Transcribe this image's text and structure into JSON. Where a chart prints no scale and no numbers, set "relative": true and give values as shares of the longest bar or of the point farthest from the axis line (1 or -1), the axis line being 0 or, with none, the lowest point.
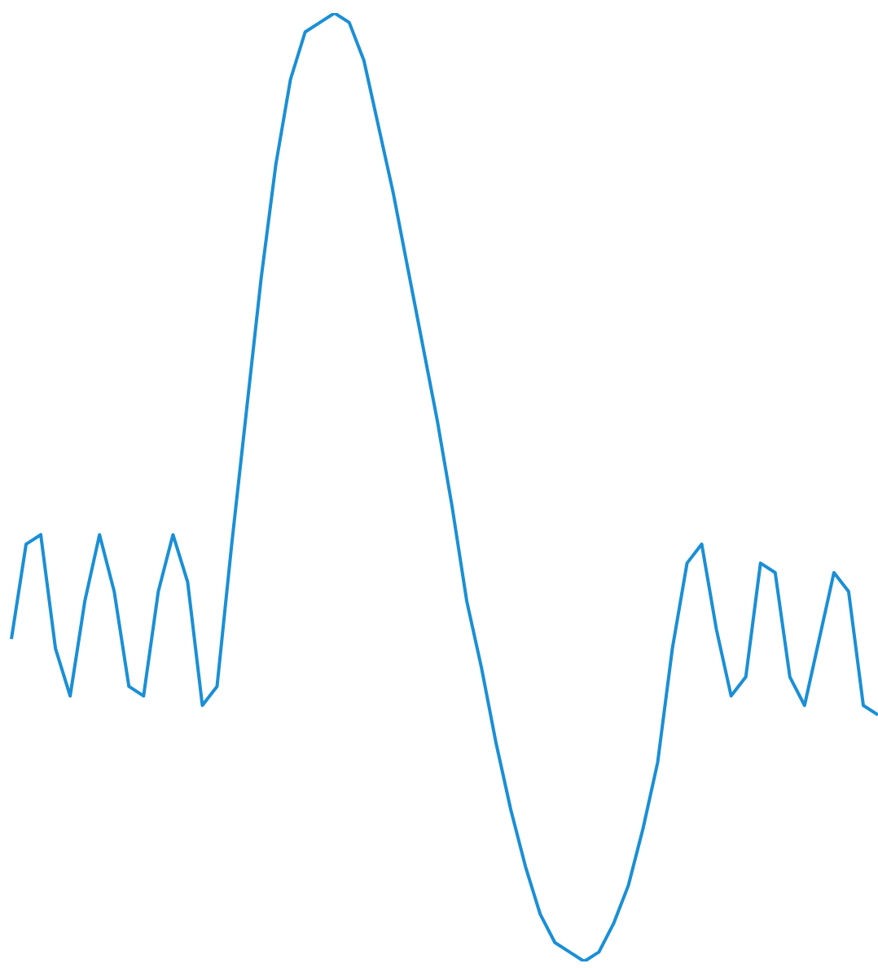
{
  "chart_data": {
    "type": "line",
    "relative": true,
    "categories": [
      null,
      null,
      null,
      null,
      null,
      null,
      null,
      null,
      null,
      null,
      null,
      null,
      null,
      null,
      null,
      null,
      null,
      null,
      null,
      null,
      null,
      null,
      null,
      null,
      null,
      null,
      null,
      null,
      null,
      null,
      null,
      null,
      null,
      null,
      null,
      null,
      null,
      null,
      null,
      null,
      null,
      null,
      null,
      null,
      null,
      null,
      null,
      null,
      null,
      null,
      null,
      null,
      null,
      null,
      null,
      null,
      null,
      null,
      null,
      null
    ],
    "series": [
      {
        "color": "#1a8fd6",
        "values": [
          0.34,
          0.44,
          0.45,
          0.33,
          0.28,
          0.38,
          0.45,
          0.39,
          0.29,
          0.28,
          0.39,
          0.45,
          0.4,
          0.27,
          0.29,
          0.44,
          0.58,
          0.72,
          0.84,
          0.93,
          0.98,
          0.99,
          1,
          0.99,
          0.95,
          0.88,
          0.81,
          0.73,
          0.65,
          0.57,
          0.48,
          0.38,
          0.31,
          0.23,
          0.16,
          0.1,
          0.05,
          0.02,
          0.01,
          0,
          0.01,
          0.04,
          0.08,
          0.14,
          0.21,
          0.33,
          0.42,
          0.44,
          0.35,
          0.28,
          0.3,
          0.42,
          0.41,
          0.3,
          0.27,
          0.34,
          0.41,
          0.39,
          0.27,
          0.26
        ]
      }
    ],
    "legend": false,
    "marker": "none",
    "line_style": "solid"
  }
}
